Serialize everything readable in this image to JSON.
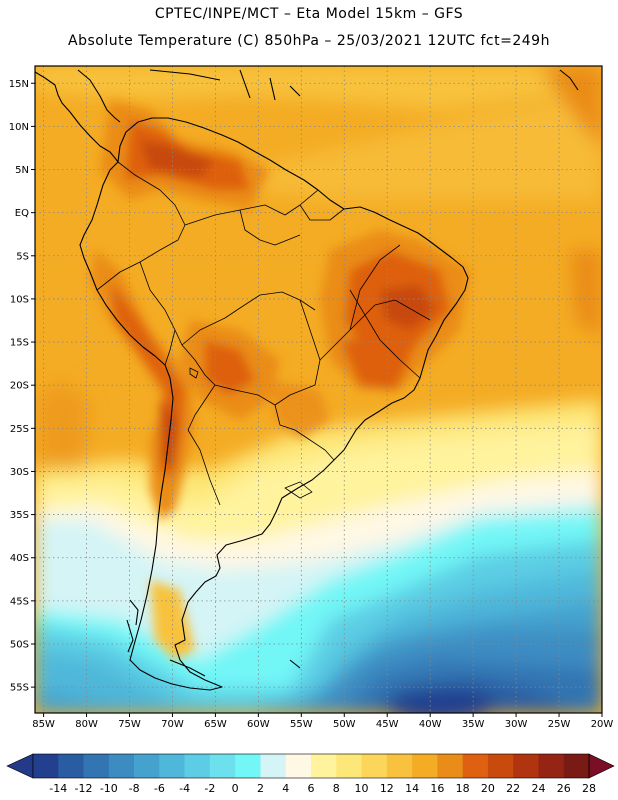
{
  "header": {
    "line1": "CPTEC/INPE/MCT –  Eta Model 15km – GFS",
    "line2": "Absolute Temperature (C) 850hPa – 25/03/2021 12UTC fct=249h"
  },
  "map": {
    "projection": "lat-lon",
    "region": "South America",
    "variable": "temperature 850hPa (C)",
    "lat_range": [
      -58,
      17
    ],
    "lon_range": [
      -86,
      -20
    ],
    "lat_labels": [
      {
        "text": "15N",
        "lat": 15
      },
      {
        "text": "10N",
        "lat": 10
      },
      {
        "text": "5N",
        "lat": 5
      },
      {
        "text": "EQ",
        "lat": 0
      },
      {
        "text": "5S",
        "lat": -5
      },
      {
        "text": "10S",
        "lat": -10
      },
      {
        "text": "15S",
        "lat": -15
      },
      {
        "text": "20S",
        "lat": -20
      },
      {
        "text": "25S",
        "lat": -25
      },
      {
        "text": "30S",
        "lat": -30
      },
      {
        "text": "35S",
        "lat": -35
      },
      {
        "text": "40S",
        "lat": -40
      },
      {
        "text": "45S",
        "lat": -45
      },
      {
        "text": "50S",
        "lat": -50
      },
      {
        "text": "55S",
        "lat": -55
      }
    ],
    "lon_labels": [
      {
        "text": "85W",
        "lon": -85
      },
      {
        "text": "80W",
        "lon": -80
      },
      {
        "text": "75W",
        "lon": -75
      },
      {
        "text": "70W",
        "lon": -70
      },
      {
        "text": "65W",
        "lon": -65
      },
      {
        "text": "60W",
        "lon": -60
      },
      {
        "text": "55W",
        "lon": -55
      },
      {
        "text": "50W",
        "lon": -50
      },
      {
        "text": "45W",
        "lon": -45
      },
      {
        "text": "40W",
        "lon": -40
      },
      {
        "text": "35W",
        "lon": -35
      },
      {
        "text": "30W",
        "lon": -30
      },
      {
        "text": "25W",
        "lon": -25
      },
      {
        "text": "20W",
        "lon": -20
      }
    ]
  },
  "colorbar": {
    "labels": [
      "-14",
      "-12",
      "-10",
      "-8",
      "-6",
      "-4",
      "-2",
      "0",
      "2",
      "4",
      "6",
      "8",
      "10",
      "12",
      "14",
      "16",
      "18",
      "20",
      "22",
      "24",
      "26",
      "28"
    ],
    "under_color": "#223a88",
    "over_color": "#7a0e26",
    "colors": [
      "#23408f",
      "#2a5ca2",
      "#3374b2",
      "#3c8cc2",
      "#45a2cf",
      "#4fb8da",
      "#5ccde4",
      "#6ce0ec",
      "#72f6f6",
      "#d4f4f6",
      "#fff8e4",
      "#fff39e",
      "#fde778",
      "#fcd65a",
      "#f8c23e",
      "#f4ac24",
      "#ea8c18",
      "#de6010",
      "#c84a0c",
      "#b03410",
      "#962414",
      "#7a1a14"
    ]
  }
}
